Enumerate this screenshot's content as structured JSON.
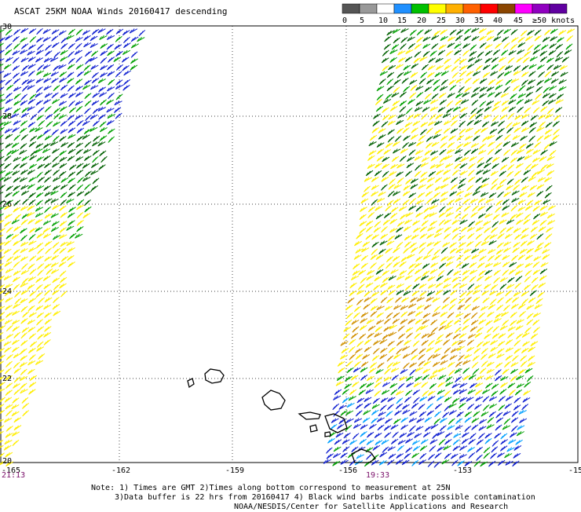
{
  "title": "ASCAT 25KM NOAA Winds 20160417 descending",
  "legend": {
    "ticks": [
      "0",
      "5",
      "10",
      "15",
      "20",
      "25",
      "30",
      "35",
      "40",
      "45",
      "≥50 knots"
    ],
    "colors": [
      "#555555",
      "#999999",
      "#ffffff",
      "#2090ff",
      "#00c000",
      "#ffff00",
      "#ffb000",
      "#ff6000",
      "#ff0000",
      "#8b4500",
      "#ff00ff",
      "#9000c0",
      "#6000a0"
    ]
  },
  "axes": {
    "lon_labels": [
      "-165",
      "-162",
      "-159",
      "-156",
      "-153",
      "-15"
    ],
    "lat_labels": [
      "30",
      "28",
      "26",
      "24",
      "22",
      "20"
    ]
  },
  "times": {
    "left": "21:13",
    "right": "19:33"
  },
  "note": [
    "Note: 1) Times are GMT 2)Times along bottom correspond to measurement at 25N",
    "3)Data buffer is 22 hrs from 20160417 4) Black wind barbs indicate possible contamination",
    "NOAA/NESDIS/Center for Satellite Applications and Research"
  ],
  "swath_colors": {
    "blue": "#1020d0",
    "cyan": "#00a0ff",
    "green": "#00a000",
    "darkgreen": "#006000",
    "yellow": "#ffee00",
    "orange": "#d09000"
  }
}
